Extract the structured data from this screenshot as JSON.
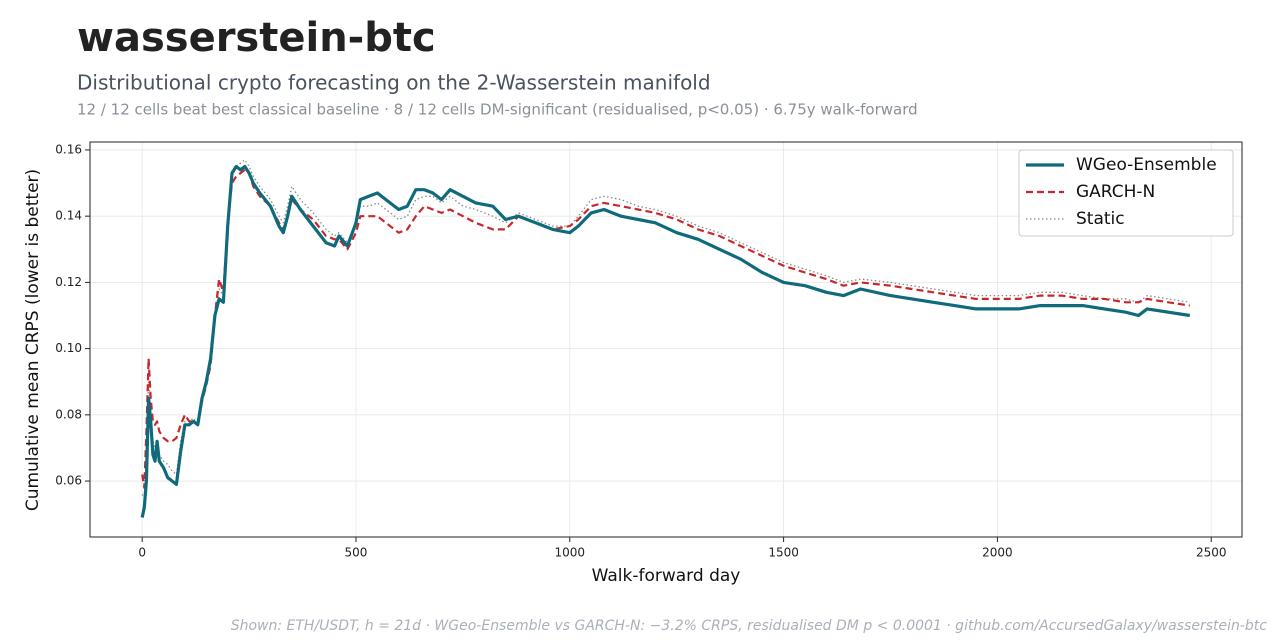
{
  "header": {
    "title": "wasserstein-btc",
    "subtitle": "Distributional crypto forecasting on the 2-Wasserstein manifold",
    "stats": "12 / 12 cells beat best classical baseline · 8 / 12 cells DM-significant (residualised, p<0.05) · 6.75y walk-forward"
  },
  "footer": "Shown: ETH/USDT, h = 21d  ·  WGeo-Ensemble vs GARCH-N: −3.2% CRPS, residualised DM p < 0.0001  ·  github.com/AccursedGalaxy/wasserstein-btc",
  "chart_data": {
    "type": "line",
    "xlabel": "Walk-forward day",
    "ylabel": "Cumulative mean CRPS (lower is better)",
    "x": [
      0,
      5,
      10,
      15,
      20,
      25,
      30,
      35,
      40,
      50,
      60,
      70,
      80,
      90,
      100,
      110,
      120,
      130,
      140,
      150,
      160,
      170,
      180,
      190,
      200,
      210,
      220,
      230,
      240,
      250,
      260,
      275,
      300,
      320,
      330,
      340,
      350,
      370,
      400,
      430,
      450,
      460,
      480,
      500,
      510,
      530,
      550,
      570,
      600,
      620,
      640,
      660,
      680,
      700,
      720,
      750,
      780,
      820,
      850,
      880,
      920,
      960,
      1000,
      1020,
      1050,
      1080,
      1120,
      1160,
      1200,
      1250,
      1300,
      1350,
      1400,
      1450,
      1500,
      1550,
      1600,
      1640,
      1680,
      1750,
      1800,
      1850,
      1900,
      1950,
      2000,
      2050,
      2100,
      2150,
      2200,
      2250,
      2300,
      2330,
      2350,
      2400,
      2450
    ],
    "series": [
      {
        "name": "WGeo-Ensemble",
        "color": "#0f6b7c",
        "style": "solid",
        "width": 3.2,
        "values": [
          0.049,
          0.052,
          0.06,
          0.085,
          0.078,
          0.068,
          0.066,
          0.072,
          0.066,
          0.064,
          0.061,
          0.06,
          0.059,
          0.069,
          0.077,
          0.077,
          0.078,
          0.077,
          0.085,
          0.09,
          0.097,
          0.11,
          0.115,
          0.114,
          0.137,
          0.153,
          0.155,
          0.154,
          0.155,
          0.153,
          0.15,
          0.147,
          0.143,
          0.137,
          0.135,
          0.14,
          0.146,
          0.142,
          0.137,
          0.132,
          0.131,
          0.134,
          0.131,
          0.138,
          0.145,
          0.146,
          0.147,
          0.145,
          0.142,
          0.143,
          0.148,
          0.148,
          0.147,
          0.145,
          0.148,
          0.146,
          0.144,
          0.143,
          0.139,
          0.14,
          0.138,
          0.136,
          0.135,
          0.137,
          0.141,
          0.142,
          0.14,
          0.139,
          0.138,
          0.135,
          0.133,
          0.13,
          0.127,
          0.123,
          0.12,
          0.119,
          0.117,
          0.116,
          0.118,
          0.116,
          0.115,
          0.114,
          0.113,
          0.112,
          0.112,
          0.112,
          0.113,
          0.113,
          0.113,
          0.112,
          0.111,
          0.11,
          0.112,
          0.111,
          0.11
        ]
      },
      {
        "name": "GARCH-N",
        "color": "#c8282d",
        "style": "dashed",
        "width": 2.2,
        "values": [
          0.062,
          0.058,
          0.075,
          0.097,
          0.085,
          0.078,
          0.077,
          0.078,
          0.075,
          0.073,
          0.072,
          0.072,
          0.073,
          0.077,
          0.08,
          0.078,
          0.078,
          0.077,
          0.084,
          0.089,
          0.095,
          0.11,
          0.121,
          0.117,
          0.138,
          0.15,
          0.152,
          0.153,
          0.154,
          0.153,
          0.149,
          0.146,
          0.143,
          0.138,
          0.136,
          0.14,
          0.145,
          0.142,
          0.139,
          0.134,
          0.133,
          0.133,
          0.13,
          0.135,
          0.14,
          0.14,
          0.14,
          0.138,
          0.135,
          0.136,
          0.14,
          0.143,
          0.142,
          0.141,
          0.142,
          0.14,
          0.138,
          0.136,
          0.136,
          0.14,
          0.138,
          0.136,
          0.137,
          0.139,
          0.143,
          0.144,
          0.143,
          0.142,
          0.141,
          0.139,
          0.136,
          0.134,
          0.131,
          0.128,
          0.125,
          0.123,
          0.121,
          0.119,
          0.12,
          0.119,
          0.118,
          0.117,
          0.116,
          0.115,
          0.115,
          0.115,
          0.116,
          0.116,
          0.115,
          0.115,
          0.114,
          0.114,
          0.115,
          0.114,
          0.113
        ]
      },
      {
        "name": "Static",
        "color": "#8a8a8a",
        "style": "dotted",
        "width": 1.3,
        "values": [
          0.056,
          0.055,
          0.07,
          0.09,
          0.082,
          0.072,
          0.07,
          0.071,
          0.068,
          0.066,
          0.065,
          0.063,
          0.062,
          0.072,
          0.078,
          0.078,
          0.079,
          0.077,
          0.085,
          0.09,
          0.096,
          0.109,
          0.118,
          0.116,
          0.14,
          0.154,
          0.155,
          0.156,
          0.157,
          0.155,
          0.152,
          0.149,
          0.145,
          0.14,
          0.138,
          0.143,
          0.149,
          0.145,
          0.141,
          0.136,
          0.134,
          0.135,
          0.132,
          0.137,
          0.143,
          0.143,
          0.144,
          0.142,
          0.139,
          0.14,
          0.145,
          0.146,
          0.146,
          0.144,
          0.146,
          0.143,
          0.142,
          0.14,
          0.138,
          0.141,
          0.139,
          0.137,
          0.137,
          0.14,
          0.145,
          0.146,
          0.145,
          0.143,
          0.142,
          0.14,
          0.137,
          0.135,
          0.132,
          0.129,
          0.126,
          0.124,
          0.122,
          0.12,
          0.121,
          0.12,
          0.119,
          0.118,
          0.117,
          0.116,
          0.116,
          0.116,
          0.117,
          0.117,
          0.116,
          0.115,
          0.115,
          0.114,
          0.116,
          0.115,
          0.114
        ]
      }
    ],
    "xlim": [
      -122,
      2572
    ],
    "ylim": [
      0.0431,
      0.1624
    ],
    "xticks": [
      0,
      500,
      1000,
      1500,
      2000,
      2500
    ],
    "yticks": [
      0.06,
      0.08,
      {
        "value": 0.1,
        "label": "0.10"
      },
      0.12,
      0.14,
      0.16
    ],
    "grid": true,
    "legend": "upper right"
  }
}
